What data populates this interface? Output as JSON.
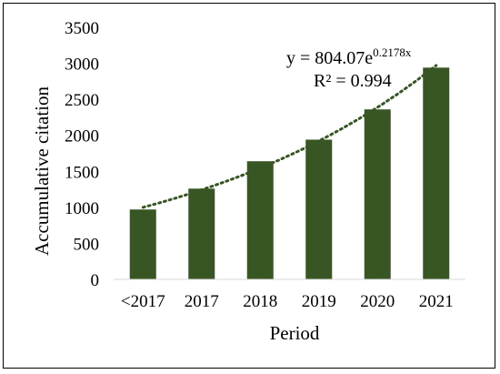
{
  "chart_data": {
    "type": "bar",
    "categories": [
      "<2017",
      "2017",
      "2018",
      "2019",
      "2020",
      "2021"
    ],
    "values": [
      970,
      1260,
      1640,
      1940,
      2360,
      2940
    ],
    "xlabel": "Period",
    "ylabel": "Accumulative citation",
    "ylim": [
      0,
      3500
    ],
    "yticks": [
      0,
      500,
      1000,
      1500,
      2000,
      2500,
      3000,
      3500
    ],
    "grid": false,
    "bar_color": "#375623",
    "trendline": {
      "type": "exponential",
      "coefficient": 804.07,
      "exponent": 0.2178,
      "color": "#375623",
      "style": "dotted",
      "equation_prefix": "y = 804.07e",
      "equation_exponent": "0.2178x",
      "r_squared_label": "R² = 0.994"
    }
  }
}
